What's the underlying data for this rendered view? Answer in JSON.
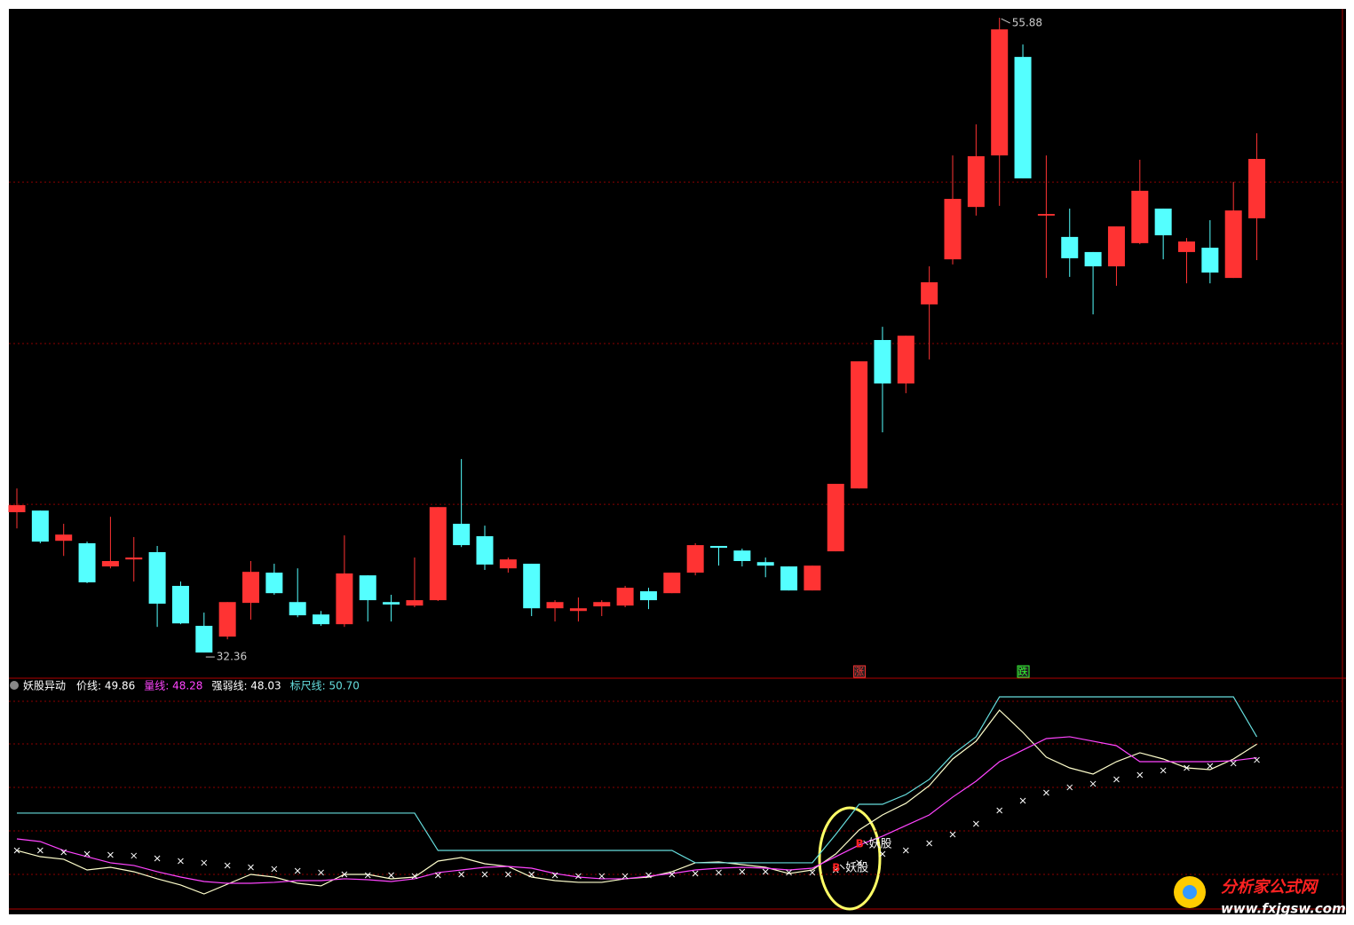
{
  "chart_data": [
    {
      "type": "candlestick",
      "up_color": "#ff3333",
      "down_color": "#54ffff",
      "ylim": [
        31.54,
        56.21
      ],
      "grid_levels": [
        49.79,
        43.81,
        37.85
      ],
      "open": [
        37.56,
        37.62,
        36.5,
        36.41,
        35.55,
        35.81,
        36.08,
        34.83,
        33.35,
        32.95,
        34.2,
        35.32,
        34.23,
        33.77,
        33.41,
        35.22,
        34.23,
        34.1,
        34.3,
        37.13,
        36.67,
        35.48,
        35.65,
        34.0,
        33.9,
        34.07,
        34.1,
        34.63,
        34.56,
        35.32,
        36.31,
        36.14,
        35.71,
        35.55,
        34.66,
        36.11,
        38.44,
        43.94,
        42.33,
        45.26,
        46.93,
        48.87,
        50.78,
        54.43,
        48.55,
        47.76,
        47.2,
        46.67,
        47.53,
        48.81,
        47.2,
        47.36,
        46.24,
        48.45
      ],
      "high": [
        38.44,
        37.62,
        37.13,
        36.47,
        37.39,
        36.64,
        36.31,
        34.99,
        33.84,
        34.23,
        35.75,
        35.65,
        35.48,
        33.9,
        36.7,
        35.22,
        34.5,
        35.88,
        37.75,
        39.53,
        37.06,
        35.88,
        35.65,
        34.3,
        34.4,
        34.3,
        34.83,
        34.76,
        35.32,
        36.41,
        36.31,
        36.21,
        35.88,
        35.55,
        35.58,
        38.61,
        43.15,
        44.43,
        44.1,
        46.67,
        50.78,
        51.93,
        55.88,
        54.89,
        50.78,
        48.81,
        47.2,
        48.15,
        50.62,
        48.81,
        47.72,
        48.38,
        49.8,
        51.6
      ],
      "low": [
        36.96,
        36.41,
        35.94,
        34.93,
        35.48,
        34.99,
        33.31,
        33.41,
        32.36,
        32.85,
        33.58,
        34.5,
        33.67,
        33.35,
        33.31,
        33.51,
        33.51,
        34.04,
        34.27,
        36.27,
        35.42,
        35.32,
        33.71,
        33.51,
        33.51,
        33.71,
        34.04,
        33.97,
        34.56,
        35.22,
        35.58,
        35.55,
        35.15,
        34.66,
        34.66,
        36.11,
        38.44,
        40.52,
        41.97,
        43.22,
        46.74,
        48.55,
        48.91,
        49.93,
        46.24,
        46.28,
        44.89,
        45.95,
        47.49,
        46.93,
        46.04,
        46.04,
        46.24,
        46.9
      ],
      "close": [
        37.82,
        36.47,
        36.73,
        34.96,
        35.75,
        35.88,
        34.17,
        33.44,
        32.36,
        34.23,
        35.35,
        34.56,
        33.74,
        33.41,
        35.29,
        34.3,
        34.14,
        34.3,
        37.75,
        36.34,
        35.62,
        35.81,
        34.0,
        34.23,
        34.0,
        34.23,
        34.76,
        34.3,
        35.32,
        36.34,
        36.24,
        35.75,
        35.58,
        34.66,
        35.58,
        38.61,
        43.15,
        42.33,
        44.1,
        46.08,
        49.17,
        50.75,
        55.45,
        49.93,
        48.61,
        46.97,
        46.67,
        48.15,
        49.47,
        47.82,
        47.59,
        46.44,
        48.74,
        50.65
      ],
      "annotations": [
        {
          "text": "55.88",
          "at": 42
        },
        {
          "text": "32.36",
          "at": 8
        }
      ],
      "signals": [
        {
          "text": "涨",
          "at": 36,
          "color": "#ff3333"
        },
        {
          "text": "跌",
          "at": 43,
          "color": "#33ff33"
        }
      ]
    },
    {
      "type": "line",
      "title": "妖股异动",
      "ylim": [
        30.99,
        57.38
      ],
      "grid_levels": [
        54.81,
        49.88,
        44.85,
        39.82,
        34.79
      ],
      "series": [
        {
          "name": "价线: 49.86",
          "color": "#ffffcc",
          "style": "line",
          "values": [
            37.56,
            36.84,
            36.54,
            35.3,
            35.61,
            35.1,
            34.28,
            33.56,
            32.53,
            33.66,
            34.79,
            34.48,
            33.76,
            33.46,
            34.79,
            34.79,
            34.28,
            34.48,
            36.33,
            36.74,
            36.02,
            35.71,
            34.48,
            34.07,
            33.87,
            33.87,
            34.28,
            34.48,
            35.1,
            36.13,
            36.23,
            35.92,
            35.61,
            34.89,
            35.3,
            37.15,
            39.93,
            41.67,
            43.01,
            45.06,
            48.14,
            50.2,
            53.79,
            51.22,
            48.35,
            47.11,
            46.4,
            47.83,
            48.86,
            48.14,
            47.11,
            46.91,
            48.14,
            49.86
          ]
        },
        {
          "name": "量线: 48.28",
          "color": "#ff44ff",
          "style": "line",
          "values": [
            38.9,
            38.59,
            37.56,
            36.84,
            36.13,
            35.82,
            35.1,
            34.48,
            33.97,
            33.76,
            33.76,
            33.87,
            34.07,
            34.07,
            34.28,
            34.17,
            33.97,
            34.28,
            35.0,
            35.3,
            35.61,
            35.71,
            35.51,
            34.89,
            34.48,
            34.28,
            34.28,
            34.59,
            34.89,
            35.3,
            35.51,
            35.61,
            35.51,
            35.3,
            35.51,
            36.84,
            38.18,
            39.21,
            40.44,
            41.67,
            43.73,
            45.57,
            47.83,
            49.17,
            50.5,
            50.71,
            50.2,
            49.68,
            47.83,
            47.83,
            47.83,
            47.83,
            47.94,
            48.28
          ]
        },
        {
          "name": "强弱线: 48.03",
          "color": "#ffffff",
          "style": "cross",
          "values": [
            37.56,
            37.56,
            37.36,
            37.15,
            37.05,
            36.95,
            36.64,
            36.33,
            36.13,
            35.82,
            35.61,
            35.41,
            35.2,
            35.0,
            34.79,
            34.69,
            34.69,
            34.59,
            34.69,
            34.79,
            34.79,
            34.79,
            34.79,
            34.69,
            34.59,
            34.59,
            34.59,
            34.69,
            34.79,
            34.89,
            35.0,
            35.1,
            35.1,
            35.0,
            35.0,
            35.3,
            36.13,
            37.15,
            37.56,
            38.38,
            39.41,
            40.64,
            42.18,
            43.31,
            44.24,
            44.86,
            45.27,
            45.78,
            46.29,
            46.81,
            47.11,
            47.32,
            47.63,
            48.03
          ]
        },
        {
          "name": "标尺线: 50.70",
          "color": "#66dddd",
          "style": "line",
          "values": [
            41.88,
            41.88,
            41.88,
            41.88,
            41.88,
            41.88,
            41.88,
            41.88,
            41.88,
            41.88,
            41.88,
            41.88,
            41.88,
            41.88,
            41.88,
            41.88,
            41.88,
            41.88,
            37.56,
            37.56,
            37.56,
            37.56,
            37.56,
            37.56,
            37.56,
            37.56,
            37.56,
            37.56,
            37.56,
            36.13,
            36.13,
            36.13,
            36.13,
            36.13,
            36.13,
            39.41,
            42.9,
            42.9,
            44.03,
            45.78,
            48.66,
            50.71,
            55.33,
            55.33,
            55.33,
            55.33,
            55.33,
            55.33,
            55.33,
            55.33,
            55.33,
            55.33,
            55.33,
            50.7
          ]
        }
      ],
      "markers": [
        {
          "letter": "B",
          "text": "妖股",
          "at": 35
        },
        {
          "letter": "B",
          "text": "妖股",
          "at": 36
        }
      ]
    }
  ],
  "watermark": {
    "title": "分析家公式网",
    "url": "www.fxjgsw.com"
  }
}
